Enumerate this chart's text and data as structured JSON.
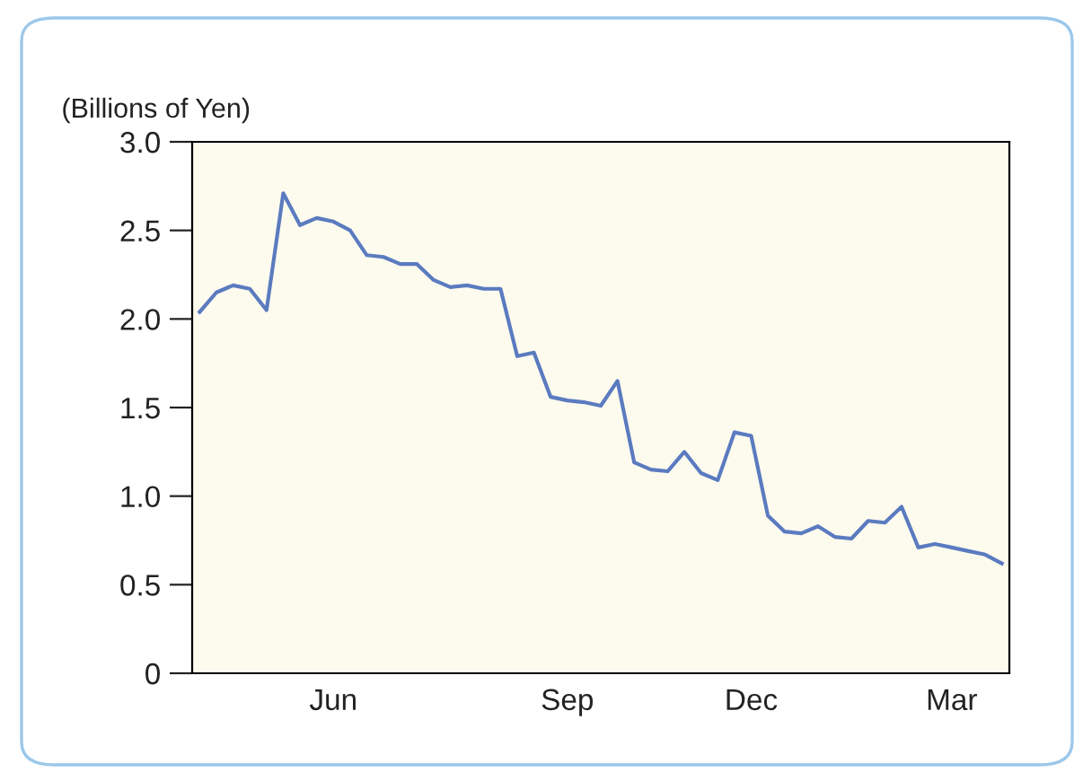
{
  "chart_data": {
    "type": "line",
    "ylabel": "(Billions of Yen)",
    "categories": [
      null,
      null,
      null,
      null,
      null,
      null,
      null,
      null,
      "Jun",
      null,
      null,
      null,
      null,
      null,
      null,
      null,
      null,
      null,
      null,
      null,
      null,
      null,
      "Sep",
      null,
      null,
      null,
      null,
      null,
      null,
      null,
      null,
      null,
      null,
      "Dec",
      null,
      null,
      null,
      null,
      null,
      null,
      null,
      null,
      null,
      null,
      null,
      "Mar",
      null,
      null,
      null
    ],
    "series": [
      {
        "color": "#5b7bc0",
        "values": [
          2.04,
          2.15,
          2.19,
          2.17,
          2.05,
          2.71,
          2.53,
          2.57,
          2.55,
          2.5,
          2.36,
          2.35,
          2.31,
          2.31,
          2.22,
          2.18,
          2.19,
          2.17,
          2.17,
          1.79,
          1.81,
          1.56,
          1.54,
          1.53,
          1.51,
          1.65,
          1.19,
          1.15,
          1.14,
          1.25,
          1.13,
          1.09,
          1.36,
          1.34,
          0.89,
          0.8,
          0.79,
          0.83,
          0.77,
          0.76,
          0.86,
          0.85,
          0.94,
          0.71,
          0.73,
          0.71,
          0.69,
          0.67,
          0.62
        ]
      }
    ],
    "ylim": [
      0,
      3.0
    ],
    "yticks": [
      0,
      {
        "value": 0.5,
        "label": "0.5"
      },
      {
        "value": 1,
        "label": "1.0"
      },
      {
        "value": 1.5,
        "label": "1.5"
      },
      {
        "value": 2,
        "label": "2.0"
      },
      {
        "value": 2.5,
        "label": "2.5"
      },
      {
        "value": 3,
        "label": "3.0"
      }
    ],
    "marker": "none",
    "line_style": "solid"
  }
}
